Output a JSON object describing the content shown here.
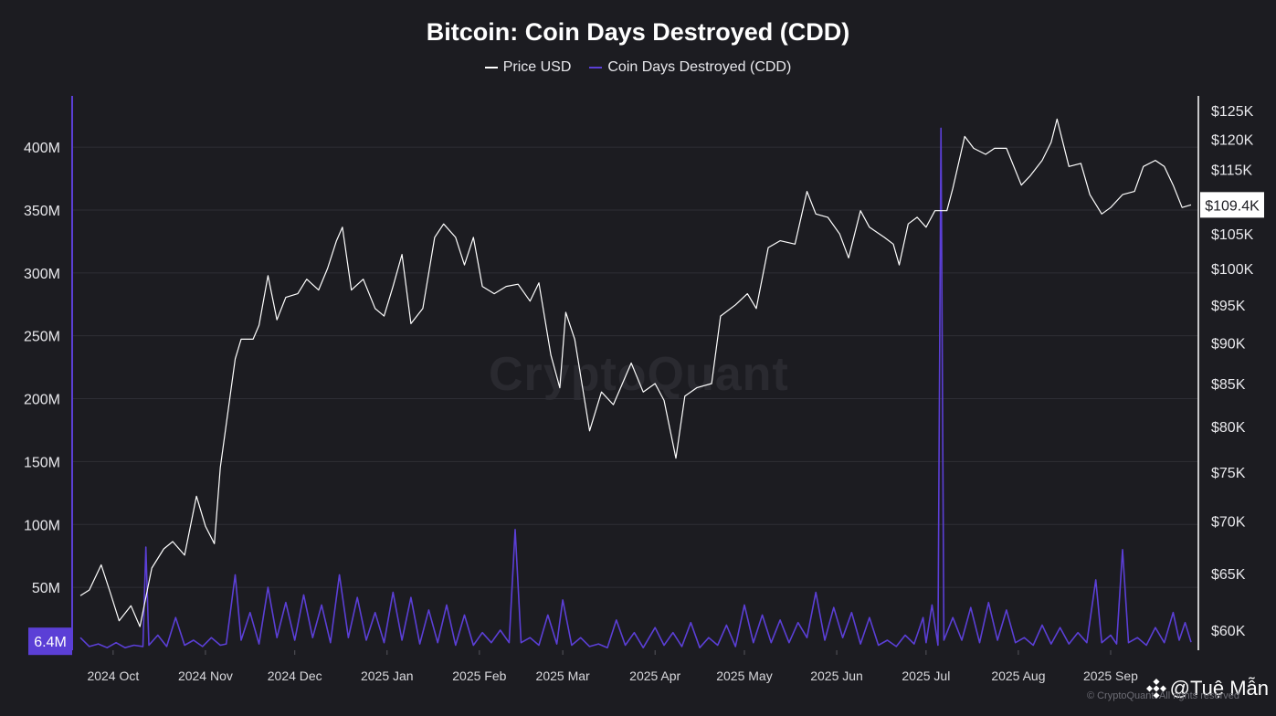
{
  "chart_data": {
    "type": "line",
    "title": "Bitcoin: Coin Days Destroyed (CDD)",
    "legend": [
      {
        "name": "Price USD",
        "color": "#ffffff"
      },
      {
        "name": "Coin Days Destroyed (CDD)",
        "color": "#5b3fd6"
      }
    ],
    "x_ticks": [
      "2024 Oct",
      "2024 Nov",
      "2024 Dec",
      "2025 Jan",
      "2025 Feb",
      "2025 Mar",
      "2025 Apr",
      "2025 May",
      "2025 Jun",
      "2025 Jul",
      "2025 Aug",
      "2025 Sep"
    ],
    "x_range": [
      "2024-09-20",
      "2025-09-28"
    ],
    "y_left": {
      "ticks": [
        {
          "v": 400,
          "label": "400M"
        },
        {
          "v": 350,
          "label": "350M"
        },
        {
          "v": 300,
          "label": "300M"
        },
        {
          "v": 250,
          "label": "250M"
        },
        {
          "v": 200,
          "label": "200M"
        },
        {
          "v": 150,
          "label": "150M"
        },
        {
          "v": 100,
          "label": "100M"
        },
        {
          "v": 50,
          "label": "50M"
        }
      ],
      "range": [
        0,
        440
      ],
      "current_label": "6.4M"
    },
    "y_right": {
      "scale": "log",
      "ticks": [
        {
          "v": 125,
          "label": "$125K"
        },
        {
          "v": 120,
          "label": "$120K"
        },
        {
          "v": 115,
          "label": "$115K"
        },
        {
          "v": 105,
          "label": "$105K"
        },
        {
          "v": 100,
          "label": "$100K"
        },
        {
          "v": 95,
          "label": "$95K"
        },
        {
          "v": 90,
          "label": "$90K"
        },
        {
          "v": 85,
          "label": "$85K"
        },
        {
          "v": 80,
          "label": "$80K"
        },
        {
          "v": 75,
          "label": "$75K"
        },
        {
          "v": 70,
          "label": "$70K"
        },
        {
          "v": 65,
          "label": "$65K"
        },
        {
          "v": 60,
          "label": "$60K"
        }
      ],
      "current_label": "$109.4K"
    },
    "price_series": {
      "name": "Price USD",
      "units": "thousand USD",
      "points": [
        [
          "2024-09-20",
          63.0
        ],
        [
          "2024-09-23",
          63.5
        ],
        [
          "2024-09-27",
          65.8
        ],
        [
          "2024-09-30",
          63.3
        ],
        [
          "2024-10-03",
          60.8
        ],
        [
          "2024-10-07",
          62.1
        ],
        [
          "2024-10-10",
          60.3
        ],
        [
          "2024-10-14",
          65.5
        ],
        [
          "2024-10-18",
          67.3
        ],
        [
          "2024-10-21",
          68.0
        ],
        [
          "2024-10-25",
          66.7
        ],
        [
          "2024-10-29",
          72.5
        ],
        [
          "2024-11-01",
          69.5
        ],
        [
          "2024-11-04",
          67.8
        ],
        [
          "2024-11-06",
          75.5
        ],
        [
          "2024-11-11",
          88.0
        ],
        [
          "2024-11-13",
          90.5
        ],
        [
          "2024-11-17",
          90.5
        ],
        [
          "2024-11-19",
          92.3
        ],
        [
          "2024-11-22",
          99.0
        ],
        [
          "2024-11-25",
          93.0
        ],
        [
          "2024-11-28",
          96.0
        ],
        [
          "2024-12-02",
          96.5
        ],
        [
          "2024-12-05",
          98.5
        ],
        [
          "2024-12-09",
          97.0
        ],
        [
          "2024-12-12",
          100.0
        ],
        [
          "2024-12-15",
          104.0
        ],
        [
          "2024-12-17",
          106.0
        ],
        [
          "2024-12-20",
          97.0
        ],
        [
          "2024-12-24",
          98.5
        ],
        [
          "2024-12-28",
          94.5
        ],
        [
          "2024-12-31",
          93.5
        ],
        [
          "2025-01-03",
          97.5
        ],
        [
          "2025-01-06",
          102.0
        ],
        [
          "2025-01-09",
          92.5
        ],
        [
          "2025-01-13",
          94.5
        ],
        [
          "2025-01-17",
          104.5
        ],
        [
          "2025-01-20",
          106.5
        ],
        [
          "2025-01-24",
          104.5
        ],
        [
          "2025-01-27",
          100.5
        ],
        [
          "2025-01-30",
          104.5
        ],
        [
          "2025-02-02",
          97.5
        ],
        [
          "2025-02-06",
          96.5
        ],
        [
          "2025-02-10",
          97.5
        ],
        [
          "2025-02-14",
          97.8
        ],
        [
          "2025-02-18",
          95.5
        ],
        [
          "2025-02-21",
          98.0
        ],
        [
          "2025-02-25",
          88.5
        ],
        [
          "2025-02-28",
          84.5
        ],
        [
          "2025-03-02",
          94.0
        ],
        [
          "2025-03-05",
          90.5
        ],
        [
          "2025-03-10",
          79.5
        ],
        [
          "2025-03-14",
          84.0
        ],
        [
          "2025-03-18",
          82.5
        ],
        [
          "2025-03-24",
          87.5
        ],
        [
          "2025-03-28",
          84.0
        ],
        [
          "2025-04-01",
          85.0
        ],
        [
          "2025-04-04",
          83.0
        ],
        [
          "2025-04-08",
          76.5
        ],
        [
          "2025-04-11",
          83.5
        ],
        [
          "2025-04-15",
          84.5
        ],
        [
          "2025-04-20",
          85.0
        ],
        [
          "2025-04-23",
          93.5
        ],
        [
          "2025-04-28",
          95.0
        ],
        [
          "2025-05-02",
          96.5
        ],
        [
          "2025-05-05",
          94.5
        ],
        [
          "2025-05-09",
          103.0
        ],
        [
          "2025-05-13",
          104.0
        ],
        [
          "2025-05-18",
          103.5
        ],
        [
          "2025-05-22",
          111.5
        ],
        [
          "2025-05-25",
          108.0
        ],
        [
          "2025-05-29",
          107.5
        ],
        [
          "2025-06-02",
          105.0
        ],
        [
          "2025-06-05",
          101.5
        ],
        [
          "2025-06-09",
          108.5
        ],
        [
          "2025-06-12",
          106.0
        ],
        [
          "2025-06-17",
          104.5
        ],
        [
          "2025-06-20",
          103.5
        ],
        [
          "2025-06-22",
          100.5
        ],
        [
          "2025-06-25",
          106.5
        ],
        [
          "2025-06-28",
          107.5
        ],
        [
          "2025-07-01",
          106.0
        ],
        [
          "2025-07-04",
          108.5
        ],
        [
          "2025-07-08",
          108.5
        ],
        [
          "2025-07-10",
          112.0
        ],
        [
          "2025-07-14",
          120.5
        ],
        [
          "2025-07-17",
          118.5
        ],
        [
          "2025-07-21",
          117.5
        ],
        [
          "2025-07-24",
          118.5
        ],
        [
          "2025-07-28",
          118.5
        ],
        [
          "2025-08-02",
          112.5
        ],
        [
          "2025-08-05",
          114.0
        ],
        [
          "2025-08-09",
          116.5
        ],
        [
          "2025-08-12",
          119.5
        ],
        [
          "2025-08-14",
          123.5
        ],
        [
          "2025-08-18",
          115.5
        ],
        [
          "2025-08-22",
          116.0
        ],
        [
          "2025-08-25",
          111.0
        ],
        [
          "2025-08-29",
          108.0
        ],
        [
          "2025-09-01",
          109.0
        ],
        [
          "2025-09-05",
          111.0
        ],
        [
          "2025-09-09",
          111.5
        ],
        [
          "2025-09-12",
          115.5
        ],
        [
          "2025-09-16",
          116.5
        ],
        [
          "2025-09-19",
          115.5
        ],
        [
          "2025-09-22",
          112.5
        ],
        [
          "2025-09-25",
          109.0
        ],
        [
          "2025-09-28",
          109.4
        ]
      ]
    },
    "cdd_series": {
      "name": "Coin Days Destroyed (CDD)",
      "units": "million",
      "points": [
        [
          "2024-09-20",
          10
        ],
        [
          "2024-09-23",
          3
        ],
        [
          "2024-09-26",
          5
        ],
        [
          "2024-09-29",
          2
        ],
        [
          "2024-10-02",
          6
        ],
        [
          "2024-10-05",
          2
        ],
        [
          "2024-10-08",
          4
        ],
        [
          "2024-10-11",
          3
        ],
        [
          "2024-10-12",
          82
        ],
        [
          "2024-10-13",
          4
        ],
        [
          "2024-10-16",
          12
        ],
        [
          "2024-10-19",
          3
        ],
        [
          "2024-10-22",
          26
        ],
        [
          "2024-10-25",
          4
        ],
        [
          "2024-10-28",
          8
        ],
        [
          "2024-10-31",
          3
        ],
        [
          "2024-11-03",
          10
        ],
        [
          "2024-11-06",
          4
        ],
        [
          "2024-11-08",
          5
        ],
        [
          "2024-11-11",
          60
        ],
        [
          "2024-11-13",
          8
        ],
        [
          "2024-11-16",
          30
        ],
        [
          "2024-11-19",
          5
        ],
        [
          "2024-11-22",
          50
        ],
        [
          "2024-11-25",
          10
        ],
        [
          "2024-11-28",
          38
        ],
        [
          "2024-12-01",
          8
        ],
        [
          "2024-12-04",
          44
        ],
        [
          "2024-12-07",
          10
        ],
        [
          "2024-12-10",
          36
        ],
        [
          "2024-12-13",
          6
        ],
        [
          "2024-12-16",
          60
        ],
        [
          "2024-12-19",
          10
        ],
        [
          "2024-12-22",
          42
        ],
        [
          "2024-12-25",
          8
        ],
        [
          "2024-12-28",
          30
        ],
        [
          "2024-12-31",
          6
        ],
        [
          "2025-01-03",
          46
        ],
        [
          "2025-01-06",
          8
        ],
        [
          "2025-01-09",
          42
        ],
        [
          "2025-01-12",
          5
        ],
        [
          "2025-01-15",
          32
        ],
        [
          "2025-01-18",
          6
        ],
        [
          "2025-01-21",
          36
        ],
        [
          "2025-01-24",
          4
        ],
        [
          "2025-01-27",
          28
        ],
        [
          "2025-01-30",
          4
        ],
        [
          "2025-02-02",
          14
        ],
        [
          "2025-02-05",
          6
        ],
        [
          "2025-02-08",
          16
        ],
        [
          "2025-02-11",
          6
        ],
        [
          "2025-02-13",
          96
        ],
        [
          "2025-02-15",
          6
        ],
        [
          "2025-02-18",
          10
        ],
        [
          "2025-02-21",
          4
        ],
        [
          "2025-02-24",
          28
        ],
        [
          "2025-02-27",
          5
        ],
        [
          "2025-03-01",
          40
        ],
        [
          "2025-03-04",
          4
        ],
        [
          "2025-03-07",
          10
        ],
        [
          "2025-03-10",
          3
        ],
        [
          "2025-03-13",
          5
        ],
        [
          "2025-03-16",
          2
        ],
        [
          "2025-03-19",
          24
        ],
        [
          "2025-03-22",
          4
        ],
        [
          "2025-03-25",
          14
        ],
        [
          "2025-03-28",
          2
        ],
        [
          "2025-04-01",
          18
        ],
        [
          "2025-04-04",
          4
        ],
        [
          "2025-04-07",
          14
        ],
        [
          "2025-04-10",
          3
        ],
        [
          "2025-04-13",
          22
        ],
        [
          "2025-04-16",
          2
        ],
        [
          "2025-04-19",
          10
        ],
        [
          "2025-04-22",
          4
        ],
        [
          "2025-04-25",
          20
        ],
        [
          "2025-04-28",
          3
        ],
        [
          "2025-05-01",
          36
        ],
        [
          "2025-05-04",
          6
        ],
        [
          "2025-05-07",
          28
        ],
        [
          "2025-05-10",
          6
        ],
        [
          "2025-05-13",
          24
        ],
        [
          "2025-05-16",
          6
        ],
        [
          "2025-05-19",
          22
        ],
        [
          "2025-05-22",
          10
        ],
        [
          "2025-05-25",
          46
        ],
        [
          "2025-05-28",
          8
        ],
        [
          "2025-05-31",
          34
        ],
        [
          "2025-06-03",
          10
        ],
        [
          "2025-06-06",
          30
        ],
        [
          "2025-06-09",
          5
        ],
        [
          "2025-06-12",
          26
        ],
        [
          "2025-06-15",
          4
        ],
        [
          "2025-06-18",
          8
        ],
        [
          "2025-06-21",
          3
        ],
        [
          "2025-06-24",
          12
        ],
        [
          "2025-06-27",
          5
        ],
        [
          "2025-06-30",
          26
        ],
        [
          "2025-07-01",
          6
        ],
        [
          "2025-07-03",
          36
        ],
        [
          "2025-07-05",
          4
        ],
        [
          "2025-07-06",
          415
        ],
        [
          "2025-07-07",
          8
        ],
        [
          "2025-07-10",
          26
        ],
        [
          "2025-07-13",
          8
        ],
        [
          "2025-07-16",
          34
        ],
        [
          "2025-07-19",
          6
        ],
        [
          "2025-07-22",
          38
        ],
        [
          "2025-07-25",
          8
        ],
        [
          "2025-07-28",
          32
        ],
        [
          "2025-07-31",
          6
        ],
        [
          "2025-08-03",
          10
        ],
        [
          "2025-08-06",
          4
        ],
        [
          "2025-08-09",
          20
        ],
        [
          "2025-08-12",
          5
        ],
        [
          "2025-08-15",
          18
        ],
        [
          "2025-08-18",
          5
        ],
        [
          "2025-08-21",
          14
        ],
        [
          "2025-08-24",
          6
        ],
        [
          "2025-08-27",
          56
        ],
        [
          "2025-08-29",
          6
        ],
        [
          "2025-09-01",
          12
        ],
        [
          "2025-09-03",
          5
        ],
        [
          "2025-09-05",
          80
        ],
        [
          "2025-09-07",
          6
        ],
        [
          "2025-09-10",
          10
        ],
        [
          "2025-09-13",
          4
        ],
        [
          "2025-09-16",
          18
        ],
        [
          "2025-09-19",
          6
        ],
        [
          "2025-09-22",
          30
        ],
        [
          "2025-09-24",
          8
        ],
        [
          "2025-09-26",
          22
        ],
        [
          "2025-09-28",
          6.4
        ]
      ]
    },
    "watermark": "CryptoQuant",
    "author": "@Tuệ Mẫn",
    "copyright": "© CryptoQuant. All rights reserved"
  },
  "colors": {
    "background": "#1c1c21",
    "price_line": "#ffffff",
    "cdd_line": "#5b3fd6",
    "grid": "#2e2e35"
  }
}
